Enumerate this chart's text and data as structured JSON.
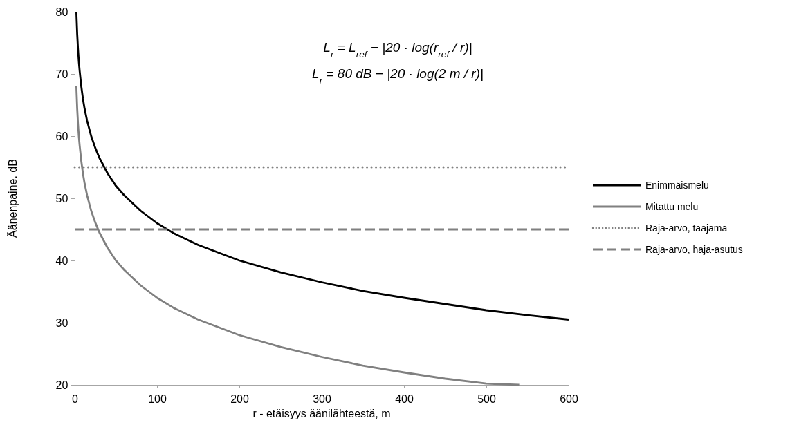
{
  "chart_data": {
    "type": "line",
    "xlabel": "r - etäisyys äänilähteestä, m",
    "ylabel": "Äänenpaine. dB",
    "xlim": [
      0,
      600
    ],
    "ylim": [
      20,
      80
    ],
    "xticks": [
      0,
      100,
      200,
      300,
      400,
      500,
      600
    ],
    "yticks": [
      20,
      30,
      40,
      50,
      60,
      70,
      80
    ],
    "grid": false,
    "legend": "right",
    "marker": "none",
    "annotations": [
      "L$_{r}$ = L$_{ref}$ − |20 · log(r$_{ref}$ / r)|",
      "L$_{r}$ = 80 dB − |20 · log(2 m / r)|"
    ],
    "series": [
      {
        "name": "Enimmäismelu",
        "color": "#000000",
        "line_style": "solid",
        "x": [
          2,
          3,
          4,
          5,
          6,
          8,
          10,
          12,
          15,
          20,
          25,
          30,
          40,
          50,
          60,
          80,
          100,
          120,
          150,
          200,
          250,
          300,
          350,
          400,
          450,
          500,
          550,
          600
        ],
        "values": [
          80,
          76.5,
          74.0,
          72.0,
          70.5,
          68.0,
          66.0,
          64.4,
          62.5,
          60.0,
          58.1,
          56.5,
          54.0,
          52.0,
          50.5,
          48.0,
          46.0,
          44.4,
          42.5,
          40.0,
          38.1,
          36.5,
          35.1,
          34.0,
          33.0,
          32.0,
          31.2,
          30.5
        ]
      },
      {
        "name": "Mitattu melu",
        "color": "#808080",
        "line_style": "solid",
        "x": [
          2,
          3,
          4,
          5,
          6,
          8,
          10,
          12,
          15,
          20,
          25,
          30,
          40,
          50,
          60,
          80,
          100,
          120,
          150,
          200,
          250,
          300,
          350,
          400,
          450,
          500,
          540
        ],
        "values": [
          68.0,
          64.5,
          62.0,
          60.0,
          58.5,
          56.0,
          54.0,
          52.4,
          50.5,
          48.0,
          46.1,
          44.5,
          42.0,
          40.0,
          38.5,
          36.0,
          34.0,
          32.4,
          30.5,
          28.0,
          26.1,
          24.5,
          23.1,
          22.0,
          21.0,
          20.2,
          20.0
        ]
      },
      {
        "name": "Raja-arvo, taajama",
        "color": "#808080",
        "line_style": "dotted",
        "x": [
          0,
          600
        ],
        "values": [
          55,
          55
        ]
      },
      {
        "name": "Raja-arvo, haja-asutus",
        "color": "#808080",
        "line_style": "dashed",
        "x": [
          0,
          600
        ],
        "values": [
          45,
          45
        ]
      }
    ]
  }
}
